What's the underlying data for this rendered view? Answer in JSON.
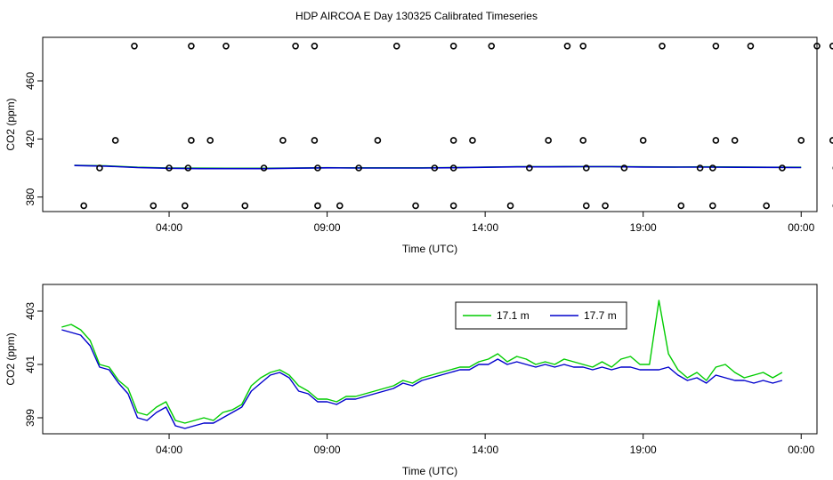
{
  "title": "HDP AIRCOA E  Day 130325  Calibrated Timeseries",
  "colors": {
    "series1": "#00cc00",
    "series2": "#0000cc",
    "axis": "#000000"
  },
  "chart_data": [
    {
      "type": "scatter",
      "xlabel": "Time (UTC)",
      "ylabel": "CO2 (ppm)",
      "xlim": [
        0.0,
        24.5
      ],
      "ylim": [
        370,
        490
      ],
      "x_ticks": [
        {
          "value": 4,
          "label": "04:00"
        },
        {
          "value": 9,
          "label": "09:00"
        },
        {
          "value": 14,
          "label": "14:00"
        },
        {
          "value": 19,
          "label": "19:00"
        },
        {
          "value": 24,
          "label": "00:00"
        }
      ],
      "y_ticks": [
        {
          "value": 380,
          "label": "380"
        },
        {
          "value": 420,
          "label": "420"
        },
        {
          "value": 460,
          "label": "460"
        }
      ],
      "grid": false,
      "points": [
        {
          "x": 1.3,
          "y": 374
        },
        {
          "x": 1.8,
          "y": 400
        },
        {
          "x": 2.3,
          "y": 419
        },
        {
          "x": 2.9,
          "y": 484
        },
        {
          "x": 3.5,
          "y": 374
        },
        {
          "x": 4.0,
          "y": 400
        },
        {
          "x": 4.5,
          "y": 374
        },
        {
          "x": 4.6,
          "y": 400
        },
        {
          "x": 4.7,
          "y": 419
        },
        {
          "x": 4.7,
          "y": 484
        },
        {
          "x": 5.3,
          "y": 419
        },
        {
          "x": 5.8,
          "y": 484
        },
        {
          "x": 6.4,
          "y": 374
        },
        {
          "x": 7.0,
          "y": 400
        },
        {
          "x": 7.6,
          "y": 419
        },
        {
          "x": 8.0,
          "y": 484
        },
        {
          "x": 8.6,
          "y": 484
        },
        {
          "x": 8.6,
          "y": 419
        },
        {
          "x": 8.7,
          "y": 400
        },
        {
          "x": 8.7,
          "y": 374
        },
        {
          "x": 9.4,
          "y": 374
        },
        {
          "x": 10.0,
          "y": 400
        },
        {
          "x": 10.6,
          "y": 419
        },
        {
          "x": 11.2,
          "y": 484
        },
        {
          "x": 11.8,
          "y": 374
        },
        {
          "x": 12.4,
          "y": 400
        },
        {
          "x": 13.0,
          "y": 374
        },
        {
          "x": 13.0,
          "y": 400
        },
        {
          "x": 13.0,
          "y": 419
        },
        {
          "x": 13.0,
          "y": 484
        },
        {
          "x": 13.6,
          "y": 419
        },
        {
          "x": 14.2,
          "y": 484
        },
        {
          "x": 14.8,
          "y": 374
        },
        {
          "x": 15.4,
          "y": 400
        },
        {
          "x": 16.0,
          "y": 419
        },
        {
          "x": 16.6,
          "y": 484
        },
        {
          "x": 17.1,
          "y": 484
        },
        {
          "x": 17.1,
          "y": 419
        },
        {
          "x": 17.2,
          "y": 400
        },
        {
          "x": 17.2,
          "y": 374
        },
        {
          "x": 17.8,
          "y": 374
        },
        {
          "x": 18.4,
          "y": 400
        },
        {
          "x": 19.0,
          "y": 419
        },
        {
          "x": 19.6,
          "y": 484
        },
        {
          "x": 20.2,
          "y": 374
        },
        {
          "x": 20.8,
          "y": 400
        },
        {
          "x": 21.2,
          "y": 374
        },
        {
          "x": 21.2,
          "y": 400
        },
        {
          "x": 21.3,
          "y": 419
        },
        {
          "x": 21.3,
          "y": 484
        },
        {
          "x": 21.9,
          "y": 419
        },
        {
          "x": 22.4,
          "y": 484
        },
        {
          "x": 22.9,
          "y": 374
        },
        {
          "x": 23.4,
          "y": 400
        },
        {
          "x": 24.0,
          "y": 419
        },
        {
          "x": 24.5,
          "y": 484
        },
        {
          "x": 25.0,
          "y": 484
        },
        {
          "x": 25.0,
          "y": 419
        },
        {
          "x": 25.1,
          "y": 400
        },
        {
          "x": 25.1,
          "y": 374
        }
      ],
      "series": [
        {
          "name": "17.1 m",
          "color": "#00cc00",
          "x": [
            1.0,
            2.0,
            3.0,
            4.0,
            5.0,
            6.0,
            7.0,
            8.0,
            9.0,
            10.0,
            11.0,
            12.0,
            13.0,
            14.0,
            15.0,
            16.0,
            17.0,
            18.0,
            19.0,
            20.0,
            21.0,
            22.0,
            23.0,
            24.0
          ],
          "values": [
            401.8,
            401.5,
            400.5,
            400.0,
            399.9,
            399.8,
            399.8,
            400.0,
            400.2,
            400.1,
            400.1,
            400.1,
            400.3,
            400.6,
            400.9,
            400.9,
            401.0,
            401.0,
            400.8,
            400.7,
            400.8,
            400.7,
            400.5,
            400.5
          ]
        },
        {
          "name": "17.7 m",
          "color": "#0000cc",
          "x": [
            1.0,
            2.0,
            3.0,
            4.0,
            5.0,
            6.0,
            7.0,
            8.0,
            9.0,
            10.0,
            11.0,
            12.0,
            13.0,
            14.0,
            15.0,
            16.0,
            17.0,
            18.0,
            19.0,
            20.0,
            21.0,
            22.0,
            23.0,
            24.0
          ],
          "values": [
            401.7,
            401.3,
            400.3,
            399.8,
            399.6,
            399.6,
            399.6,
            399.9,
            400.1,
            400.0,
            400.0,
            400.0,
            400.2,
            400.5,
            400.8,
            400.8,
            400.9,
            400.9,
            400.7,
            400.6,
            400.6,
            400.5,
            400.4,
            400.3
          ]
        }
      ]
    },
    {
      "type": "line",
      "xlabel": "Time (UTC)",
      "ylabel": "CO2 (ppm)",
      "xlim": [
        0.0,
        24.5
      ],
      "ylim": [
        398.4,
        404.0
      ],
      "x_ticks": [
        {
          "value": 4,
          "label": "04:00"
        },
        {
          "value": 9,
          "label": "09:00"
        },
        {
          "value": 14,
          "label": "14:00"
        },
        {
          "value": 19,
          "label": "19:00"
        },
        {
          "value": 24,
          "label": "00:00"
        }
      ],
      "y_ticks": [
        {
          "value": 399,
          "label": "399"
        },
        {
          "value": 401,
          "label": "401"
        },
        {
          "value": 403,
          "label": "403"
        }
      ],
      "grid": false,
      "legend": {
        "position": "top-right"
      },
      "series": [
        {
          "name": "17.1 m",
          "color": "#00cc00",
          "x": [
            0.6,
            0.9,
            1.2,
            1.5,
            1.8,
            2.1,
            2.4,
            2.7,
            3.0,
            3.3,
            3.6,
            3.9,
            4.2,
            4.5,
            4.8,
            5.1,
            5.4,
            5.7,
            6.0,
            6.3,
            6.6,
            6.9,
            7.2,
            7.5,
            7.8,
            8.1,
            8.4,
            8.7,
            9.0,
            9.3,
            9.6,
            9.9,
            10.2,
            10.5,
            10.8,
            11.1,
            11.4,
            11.7,
            12.0,
            12.3,
            12.6,
            12.9,
            13.2,
            13.5,
            13.8,
            14.1,
            14.4,
            14.7,
            15.0,
            15.3,
            15.6,
            15.9,
            16.2,
            16.5,
            16.8,
            17.1,
            17.4,
            17.7,
            18.0,
            18.3,
            18.6,
            18.9,
            19.2,
            19.5,
            19.8,
            20.1,
            20.4,
            20.7,
            21.0,
            21.3,
            21.6,
            21.9,
            22.2,
            22.5,
            22.8,
            23.1,
            23.4
          ],
          "values": [
            402.4,
            402.5,
            402.3,
            401.9,
            401.0,
            400.9,
            400.4,
            400.1,
            399.2,
            399.1,
            399.4,
            399.6,
            398.9,
            398.8,
            398.9,
            399.0,
            398.9,
            399.2,
            399.3,
            399.5,
            400.2,
            400.5,
            400.7,
            400.8,
            400.6,
            400.2,
            400.0,
            399.7,
            399.7,
            399.6,
            399.8,
            399.8,
            399.9,
            400.0,
            400.1,
            400.2,
            400.4,
            400.3,
            400.5,
            400.6,
            400.7,
            400.8,
            400.9,
            400.9,
            401.1,
            401.2,
            401.4,
            401.1,
            401.3,
            401.2,
            401.0,
            401.1,
            401.0,
            401.2,
            401.1,
            401.0,
            400.9,
            401.1,
            400.9,
            401.2,
            401.3,
            401.0,
            401.0,
            403.4,
            401.4,
            400.8,
            400.5,
            400.7,
            400.4,
            400.9,
            401.0,
            400.7,
            400.5,
            400.6,
            400.7,
            400.5,
            400.7
          ]
        },
        {
          "name": "17.7 m",
          "color": "#0000cc",
          "x": [
            0.6,
            0.9,
            1.2,
            1.5,
            1.8,
            2.1,
            2.4,
            2.7,
            3.0,
            3.3,
            3.6,
            3.9,
            4.2,
            4.5,
            4.8,
            5.1,
            5.4,
            5.7,
            6.0,
            6.3,
            6.6,
            6.9,
            7.2,
            7.5,
            7.8,
            8.1,
            8.4,
            8.7,
            9.0,
            9.3,
            9.6,
            9.9,
            10.2,
            10.5,
            10.8,
            11.1,
            11.4,
            11.7,
            12.0,
            12.3,
            12.6,
            12.9,
            13.2,
            13.5,
            13.8,
            14.1,
            14.4,
            14.7,
            15.0,
            15.3,
            15.6,
            15.9,
            16.2,
            16.5,
            16.8,
            17.1,
            17.4,
            17.7,
            18.0,
            18.3,
            18.6,
            18.9,
            19.2,
            19.5,
            19.8,
            20.1,
            20.4,
            20.7,
            21.0,
            21.3,
            21.6,
            21.9,
            22.2,
            22.5,
            22.8,
            23.1,
            23.4
          ],
          "values": [
            402.3,
            402.2,
            402.1,
            401.7,
            400.9,
            400.8,
            400.3,
            399.9,
            399.0,
            398.9,
            399.2,
            399.4,
            398.7,
            398.6,
            398.7,
            398.8,
            398.8,
            399.0,
            399.2,
            399.4,
            400.0,
            400.3,
            400.6,
            400.7,
            400.5,
            400.0,
            399.9,
            399.6,
            399.6,
            399.5,
            399.7,
            399.7,
            399.8,
            399.9,
            400.0,
            400.1,
            400.3,
            400.2,
            400.4,
            400.5,
            400.6,
            400.7,
            400.8,
            400.8,
            401.0,
            401.0,
            401.2,
            401.0,
            401.1,
            401.0,
            400.9,
            401.0,
            400.9,
            401.0,
            400.9,
            400.9,
            400.8,
            400.9,
            400.8,
            400.9,
            400.9,
            400.8,
            400.8,
            400.8,
            400.9,
            400.6,
            400.4,
            400.5,
            400.3,
            400.6,
            400.5,
            400.4,
            400.4,
            400.3,
            400.4,
            400.3,
            400.4
          ]
        }
      ]
    }
  ]
}
